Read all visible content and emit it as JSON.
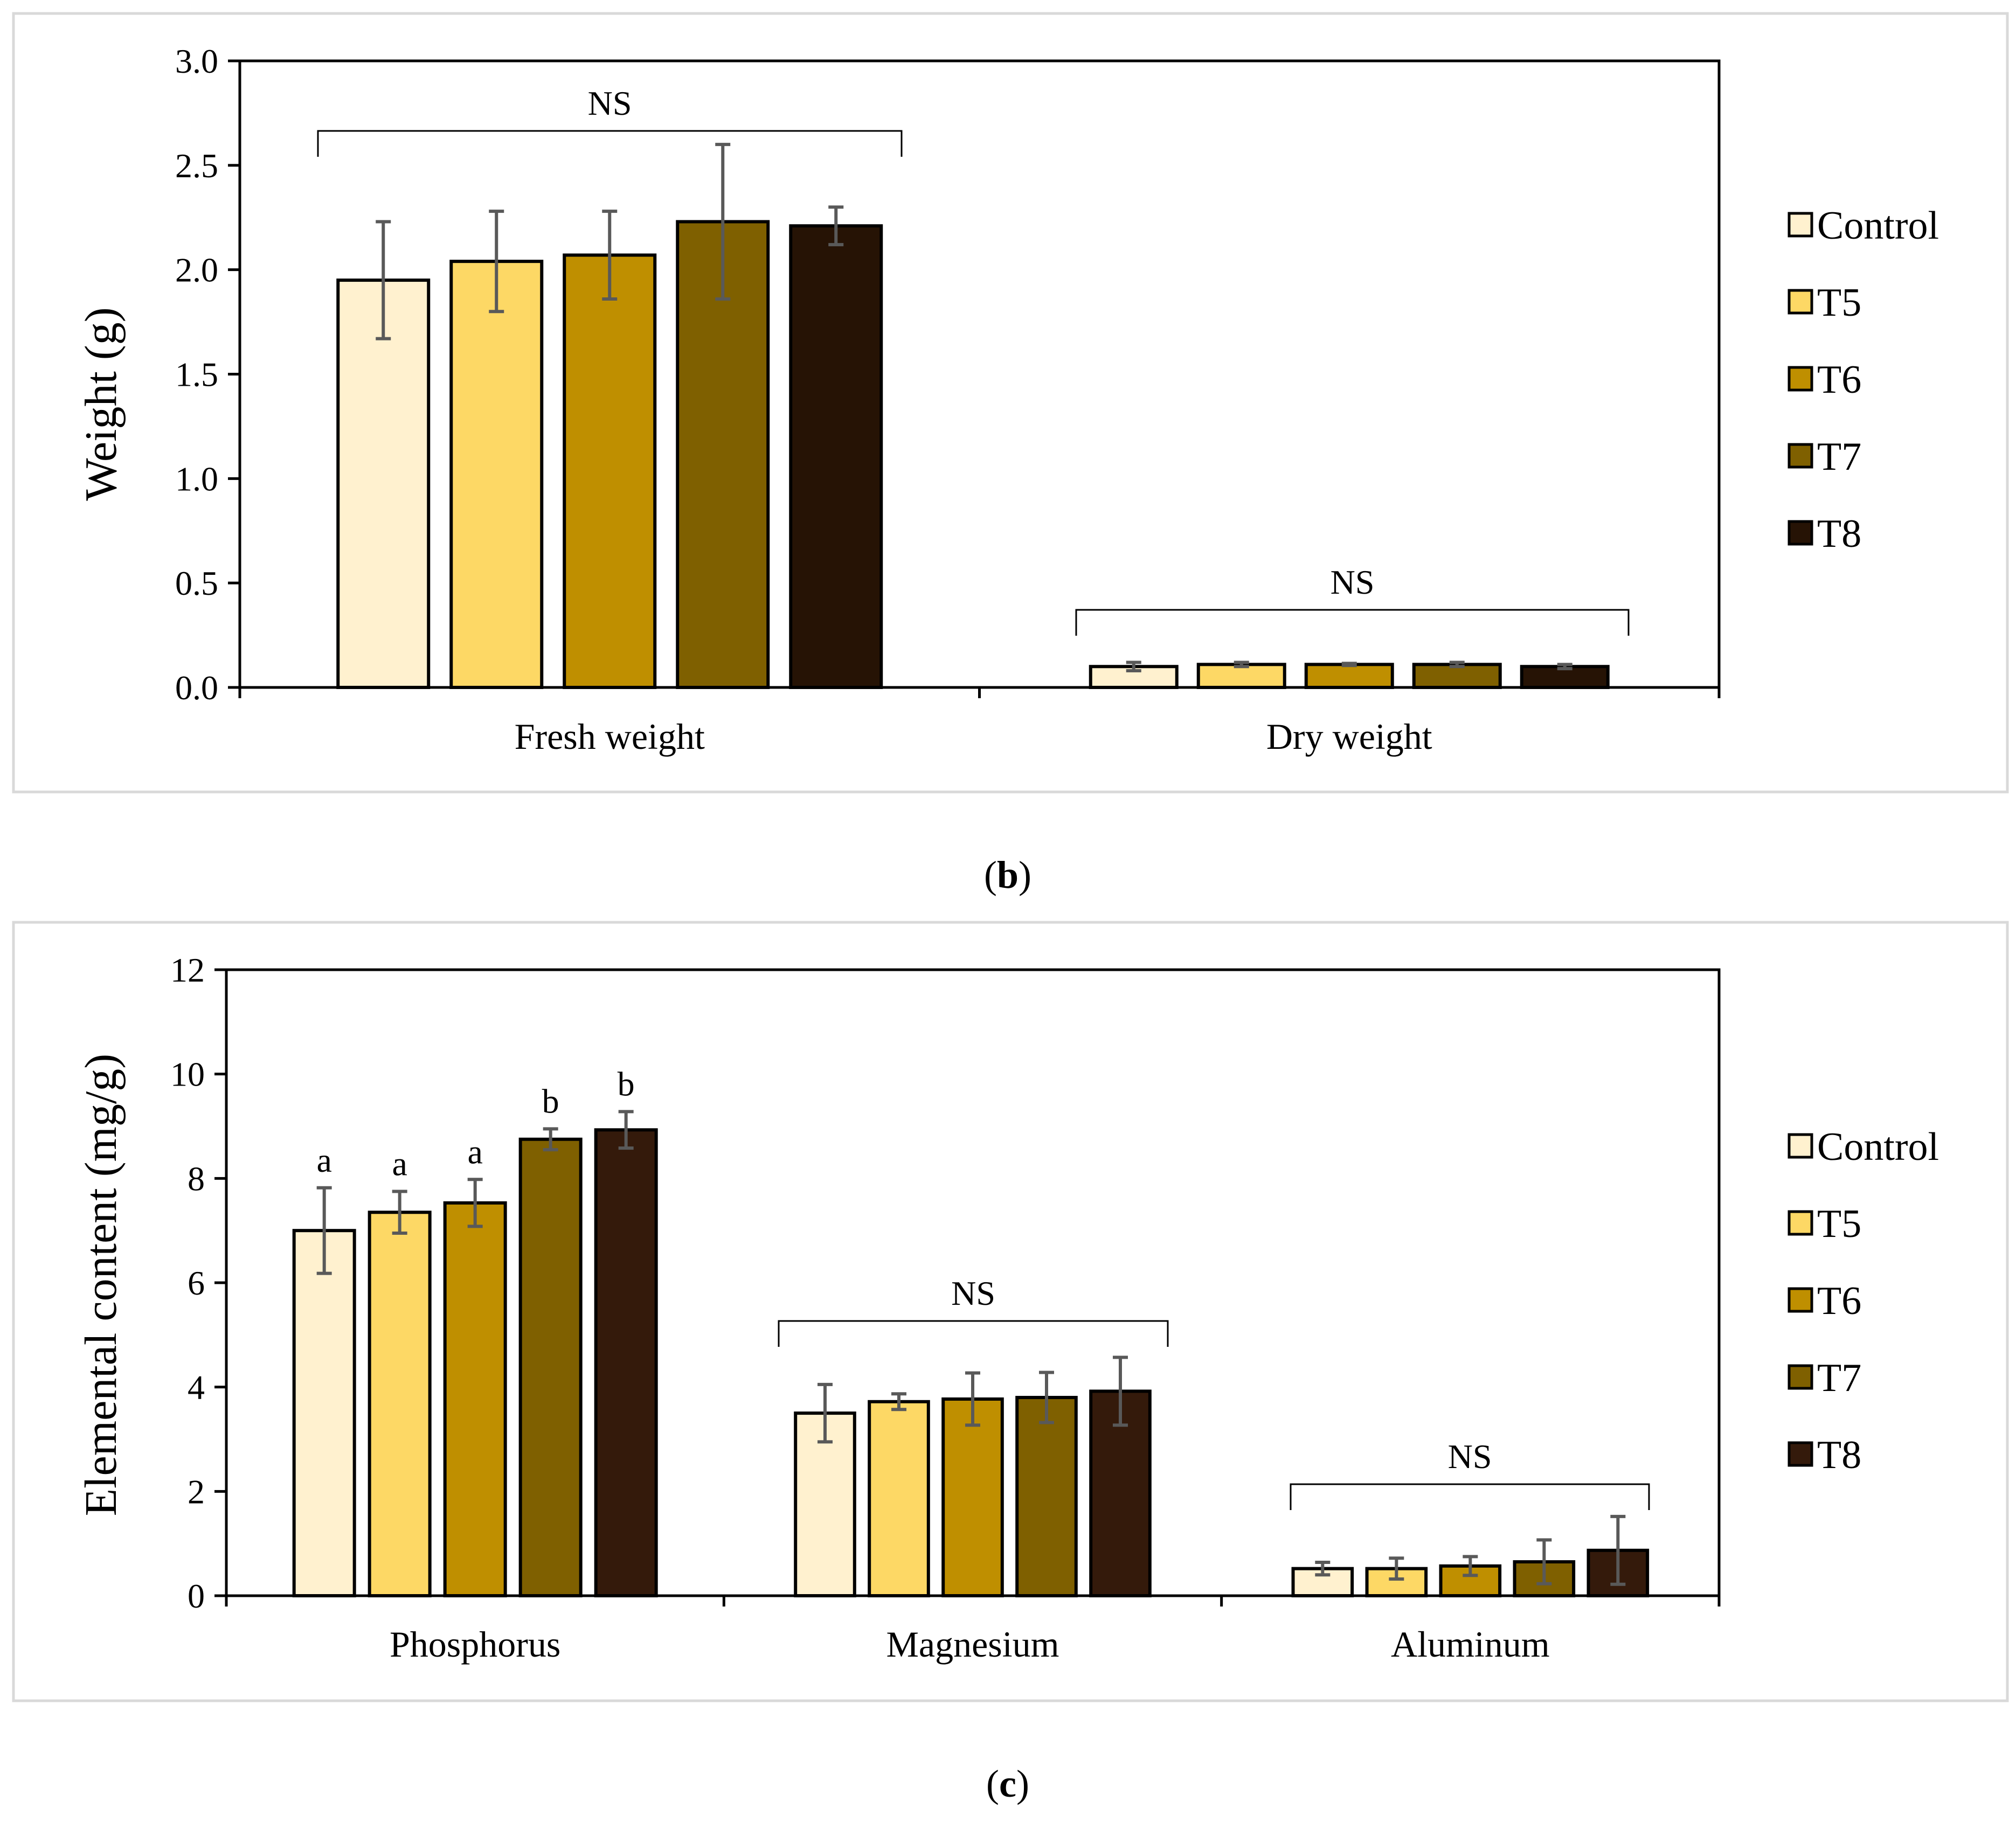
{
  "colors": {
    "Control": "#fff1cf",
    "T5": "#fdd865",
    "T6": "#bf8f00",
    "T7": "#7f6000",
    "T8_b": "#261305",
    "T8_c": "#341a0b"
  },
  "chart_data": [
    {
      "type": "bar",
      "panel": "b",
      "caption_letter": "b",
      "ylabel": "Weight (g)",
      "ylim": [
        0,
        3.0
      ],
      "yticks": [
        "0.0",
        "0.5",
        "1.0",
        "1.5",
        "2.0",
        "2.5",
        "3.0"
      ],
      "categories": [
        "Fresh weight",
        "Dry weight"
      ],
      "series": [
        {
          "name": "Control",
          "values": [
            1.95,
            0.1
          ],
          "errors": [
            0.28,
            0.02
          ]
        },
        {
          "name": "T5",
          "values": [
            2.04,
            0.11
          ],
          "errors": [
            0.24,
            0.01
          ]
        },
        {
          "name": "T6",
          "values": [
            2.07,
            0.11
          ],
          "errors": [
            0.21,
            0.005
          ]
        },
        {
          "name": "T7",
          "values": [
            2.23,
            0.11
          ],
          "errors": [
            0.37,
            0.01
          ]
        },
        {
          "name": "T8",
          "values": [
            2.21,
            0.1
          ],
          "errors": [
            0.09,
            0.01
          ]
        }
      ],
      "group_annotations": [
        "NS",
        "NS"
      ],
      "bar_annotations": [
        [
          "",
          "",
          "",
          "",
          ""
        ],
        [
          "",
          "",
          "",
          "",
          ""
        ]
      ],
      "legend": [
        "Control",
        "T5",
        "T6",
        "T7",
        "T8"
      ],
      "legend_position": "right"
    },
    {
      "type": "bar",
      "panel": "c",
      "caption_letter": "c",
      "ylabel": "Elemental content (mg/g)",
      "ylim": [
        0,
        12
      ],
      "yticks": [
        "0",
        "2",
        "4",
        "6",
        "8",
        "10",
        "12"
      ],
      "categories": [
        "Phosphorus",
        "Magnesium",
        "Aluminum"
      ],
      "series": [
        {
          "name": "Control",
          "values": [
            7.0,
            3.5,
            0.52
          ],
          "errors": [
            0.82,
            0.55,
            0.12
          ]
        },
        {
          "name": "T5",
          "values": [
            7.35,
            3.72,
            0.52
          ],
          "errors": [
            0.4,
            0.15,
            0.2
          ]
        },
        {
          "name": "T6",
          "values": [
            7.53,
            3.77,
            0.57
          ],
          "errors": [
            0.45,
            0.5,
            0.18
          ]
        },
        {
          "name": "T7",
          "values": [
            8.75,
            3.8,
            0.65
          ],
          "errors": [
            0.2,
            0.48,
            0.42
          ]
        },
        {
          "name": "T8",
          "values": [
            8.93,
            3.92,
            0.87
          ],
          "errors": [
            0.35,
            0.65,
            0.65
          ]
        }
      ],
      "group_annotations": [
        "",
        "NS",
        "NS"
      ],
      "bar_annotations": [
        [
          "a",
          "a",
          "a",
          "b",
          "b"
        ],
        [
          "",
          "",
          "",
          "",
          ""
        ],
        [
          "",
          "",
          "",
          "",
          ""
        ]
      ],
      "legend": [
        "Control",
        "T5",
        "T6",
        "T7",
        "T8"
      ],
      "legend_position": "right"
    }
  ]
}
